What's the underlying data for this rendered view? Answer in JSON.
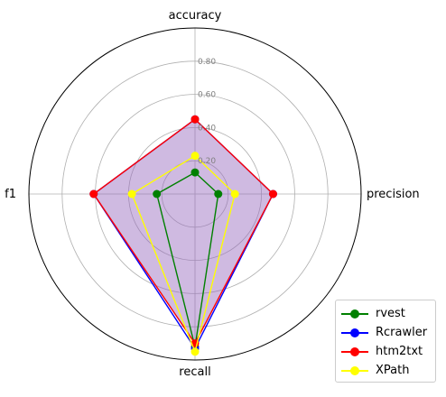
{
  "chart_data": {
    "type": "radar",
    "axes": [
      "accuracy",
      "precision",
      "recall",
      "f1"
    ],
    "rlim": [
      0,
      1.0
    ],
    "rticks": [
      0.2,
      0.4,
      0.6,
      0.8
    ],
    "rtick_labels": [
      "0.20",
      "0.40",
      "0.60",
      "0.80"
    ],
    "grid": true,
    "legend_position": "bottom-right",
    "series": [
      {
        "name": "rvest",
        "color": "#008000",
        "values": [
          0.13,
          0.14,
          0.92,
          0.23
        ]
      },
      {
        "name": "Rcrawler",
        "color": "#0000ff",
        "values": [
          0.45,
          0.47,
          0.93,
          0.61
        ]
      },
      {
        "name": "htm2txt",
        "color": "#ff0000",
        "values": [
          0.45,
          0.47,
          0.9,
          0.61
        ]
      },
      {
        "name": "XPath",
        "color": "#ffff00",
        "values": [
          0.23,
          0.24,
          0.95,
          0.38
        ]
      }
    ],
    "fill": {
      "series": "htm2txt",
      "color": "#9467bd",
      "opacity": 0.45
    }
  }
}
